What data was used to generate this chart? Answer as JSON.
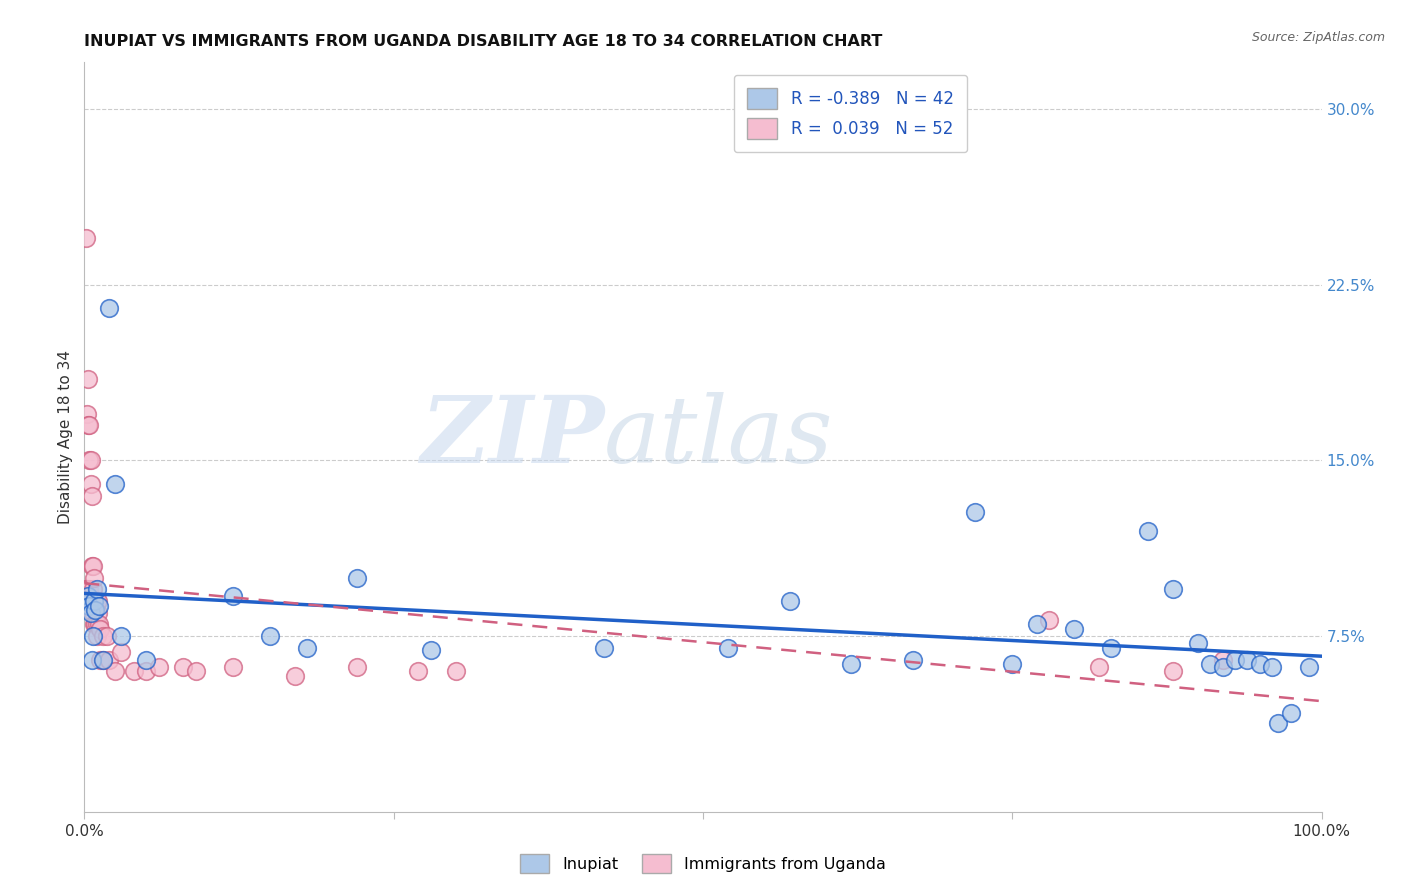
{
  "title": "INUPIAT VS IMMIGRANTS FROM UGANDA DISABILITY AGE 18 TO 34 CORRELATION CHART",
  "source": "Source: ZipAtlas.com",
  "ylabel": "Disability Age 18 to 34",
  "legend_labels": [
    "Inupiat",
    "Immigrants from Uganda"
  ],
  "r_inupiat": "-0.389",
  "n_inupiat": "42",
  "r_uganda": "0.039",
  "n_uganda": "52",
  "color_inupiat": "#adc8e8",
  "color_uganda": "#f5bdd0",
  "line_color_inupiat": "#2060c8",
  "line_color_uganda": "#d06080",
  "watermark_zip": "ZIP",
  "watermark_atlas": "atlas",
  "background_color": "#ffffff",
  "grid_color": "#cccccc",
  "inupiat_x": [
    0.001,
    0.003,
    0.004,
    0.005,
    0.006,
    0.007,
    0.008,
    0.009,
    0.01,
    0.012,
    0.015,
    0.02,
    0.025,
    0.03,
    0.05,
    0.12,
    0.15,
    0.18,
    0.22,
    0.28,
    0.42,
    0.52,
    0.57,
    0.62,
    0.67,
    0.72,
    0.75,
    0.77,
    0.8,
    0.83,
    0.86,
    0.88,
    0.9,
    0.91,
    0.92,
    0.93,
    0.94,
    0.95,
    0.96,
    0.965,
    0.975,
    0.99
  ],
  "inupiat_y": [
    0.09,
    0.092,
    0.088,
    0.085,
    0.065,
    0.075,
    0.09,
    0.086,
    0.095,
    0.088,
    0.065,
    0.215,
    0.14,
    0.075,
    0.065,
    0.092,
    0.075,
    0.07,
    0.1,
    0.069,
    0.07,
    0.07,
    0.09,
    0.063,
    0.065,
    0.128,
    0.063,
    0.08,
    0.078,
    0.07,
    0.12,
    0.095,
    0.072,
    0.063,
    0.062,
    0.065,
    0.065,
    0.063,
    0.062,
    0.038,
    0.042,
    0.062
  ],
  "uganda_x": [
    0.001,
    0.001,
    0.002,
    0.002,
    0.003,
    0.003,
    0.003,
    0.004,
    0.004,
    0.004,
    0.005,
    0.005,
    0.005,
    0.006,
    0.006,
    0.006,
    0.007,
    0.007,
    0.007,
    0.008,
    0.008,
    0.008,
    0.009,
    0.009,
    0.01,
    0.01,
    0.01,
    0.011,
    0.011,
    0.012,
    0.013,
    0.013,
    0.015,
    0.015,
    0.018,
    0.02,
    0.025,
    0.03,
    0.04,
    0.05,
    0.06,
    0.08,
    0.09,
    0.12,
    0.17,
    0.22,
    0.27,
    0.3,
    0.78,
    0.82,
    0.88,
    0.92
  ],
  "uganda_y": [
    0.245,
    0.095,
    0.17,
    0.095,
    0.185,
    0.165,
    0.09,
    0.165,
    0.15,
    0.095,
    0.15,
    0.14,
    0.09,
    0.135,
    0.105,
    0.09,
    0.105,
    0.095,
    0.085,
    0.1,
    0.09,
    0.08,
    0.09,
    0.08,
    0.09,
    0.08,
    0.075,
    0.09,
    0.085,
    0.08,
    0.078,
    0.065,
    0.075,
    0.065,
    0.075,
    0.065,
    0.06,
    0.068,
    0.06,
    0.06,
    0.062,
    0.062,
    0.06,
    0.062,
    0.058,
    0.062,
    0.06,
    0.06,
    0.082,
    0.062,
    0.06,
    0.065
  ],
  "xlim": [
    0.0,
    1.0
  ],
  "ylim": [
    0.0,
    0.32
  ]
}
